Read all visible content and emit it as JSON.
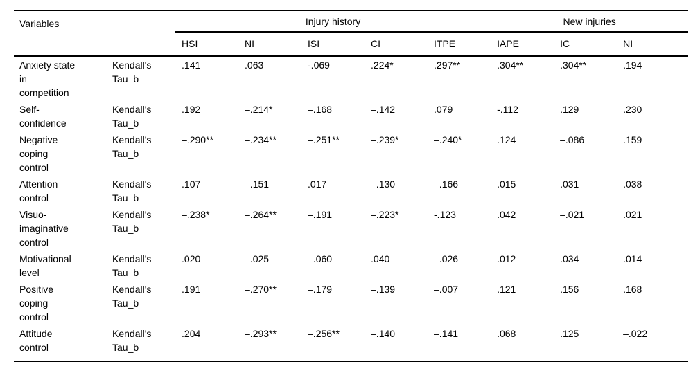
{
  "page": {
    "background_color": "#ffffff",
    "text_color": "#000000",
    "rule_color": "#000000"
  },
  "table": {
    "corner_label": "Variables",
    "groups": [
      {
        "label": "Injury history",
        "span": 5
      },
      {
        "label": "New injuries",
        "span": 3
      }
    ],
    "sub_headers": [
      "HSI",
      "NI",
      "ISI",
      "CI",
      "ITPE",
      "IAPE",
      "IC",
      "NI"
    ],
    "rows": [
      {
        "variable": "Anxiety state\nin\ncompetition",
        "stat": "Kendall's\nTau_b",
        "values": [
          ".141",
          ".063",
          "-.069",
          ".224*",
          ".297**",
          ".304**",
          ".304**",
          ".194"
        ]
      },
      {
        "variable": "Self-\nconfidence",
        "stat": "Kendall's\nTau_b",
        "values": [
          ".192",
          "–.214*",
          "–.168",
          "–.142",
          ".079",
          "-.112",
          ".129",
          ".230"
        ]
      },
      {
        "variable": "Negative\ncoping\ncontrol",
        "stat": "Kendall's\nTau_b",
        "values": [
          "–.290**",
          "–.234**",
          "–.251**",
          "–.239*",
          "–.240*",
          ".124",
          "–.086",
          ".159"
        ]
      },
      {
        "variable": "Attention\ncontrol",
        "stat": "Kendall's\nTau_b",
        "values": [
          ".107",
          "–.151",
          ".017",
          "–.130",
          "–.166",
          ".015",
          ".031",
          ".038"
        ]
      },
      {
        "variable": "Visuo-\nimaginative\ncontrol",
        "stat": "Kendall's\nTau_b",
        "values": [
          "–.238*",
          "–.264**",
          "–.191",
          "–.223*",
          "-.123",
          ".042",
          "–.021",
          ".021"
        ]
      },
      {
        "variable": "Motivational\nlevel",
        "stat": "Kendall's\nTau_b",
        "values": [
          ".020",
          "–.025",
          "–.060",
          ".040",
          "–.026",
          ".012",
          ".034",
          ".014"
        ]
      },
      {
        "variable": "Positive\ncoping\ncontrol",
        "stat": "Kendall's\nTau_b",
        "values": [
          ".191",
          "–.270**",
          "–.179",
          "–.139",
          "–.007",
          ".121",
          ".156",
          ".168"
        ]
      },
      {
        "variable": "Attitude\ncontrol",
        "stat": "Kendall's\nTau_b",
        "values": [
          ".204",
          "–.293**",
          "–.256**",
          "–.140",
          "–.141",
          ".068",
          ".125",
          "–.022"
        ]
      }
    ]
  }
}
